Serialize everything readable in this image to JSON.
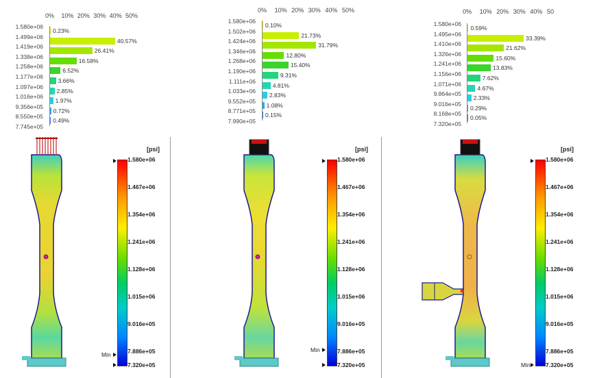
{
  "ticks": [
    "0%",
    "10%",
    "20%",
    "30%",
    "40%",
    "50%"
  ],
  "unit": "[psi]",
  "min_label": "Min",
  "colorbar_labels": [
    "1.580e+06",
    "1.467e+06",
    "1.354e+06",
    "1.241e+06",
    "1.128e+06",
    "1.015e+06",
    "9.016e+05",
    "7.886e+05",
    "7.320e+05"
  ],
  "panels": [
    {
      "last_tick": "50%",
      "edges": [
        "1.580e+06",
        "1.499e+06",
        "1.419e+06",
        "1.338e+06",
        "1.258e+06",
        "1.177e+06",
        "1.097e+06",
        "1.016e+06",
        "9.356e+05",
        "8.550e+05",
        "7.745e+05"
      ],
      "values": [
        0.23,
        40.57,
        26.41,
        16.58,
        6.52,
        3.66,
        2.85,
        1.97,
        0.72,
        0.49
      ],
      "labels": [
        "0.23%",
        "40.57%",
        "26.41%",
        "16.58%",
        "6.52%",
        "3.66%",
        "2.85%",
        "1.97%",
        "0.72%",
        "0.49%"
      ]
    },
    {
      "last_tick": "50%",
      "edges": [
        "1.580e+06",
        "1.502e+06",
        "1.424e+06",
        "1.346e+06",
        "1.268e+06",
        "1.190e+06",
        "1.111e+06",
        "1.033e+06",
        "9.552e+05",
        "8.771e+05",
        "7.990e+05"
      ],
      "values": [
        0.1,
        21.73,
        31.79,
        12.8,
        15.4,
        9.31,
        4.81,
        2.83,
        1.08,
        0.15
      ],
      "labels": [
        "0.10%",
        "21.73%",
        "31.79%",
        "12.80%",
        "15.40%",
        "9.31%",
        "4.81%",
        "2.83%",
        "1.08%",
        "0.15%"
      ]
    },
    {
      "last_tick": "50",
      "edges": [
        "1.580e+06",
        "1.495e+06",
        "1.410e+06",
        "1.326e+06",
        "1.241e+06",
        "1.156e+06",
        "1.071e+06",
        "9.864e+05",
        "9.016e+05",
        "8.168e+05",
        "7.320e+05"
      ],
      "values": [
        0.59,
        33.39,
        21.62,
        15.6,
        13.83,
        7.62,
        4.67,
        2.33,
        0.29,
        0.05
      ],
      "labels": [
        "0.59%",
        "33.39%",
        "21.62%",
        "15.60%",
        "13.83%",
        "7.62%",
        "4.67%",
        "2.33%",
        "0.29%",
        "0.05%"
      ]
    }
  ],
  "bar_colors": [
    "#f2dc00",
    "#c8ee00",
    "#a5e600",
    "#66dd00",
    "#3ad42a",
    "#22d47a",
    "#24d6b4",
    "#28cde6",
    "#2aa8f0",
    "#3c6ef2"
  ]
}
